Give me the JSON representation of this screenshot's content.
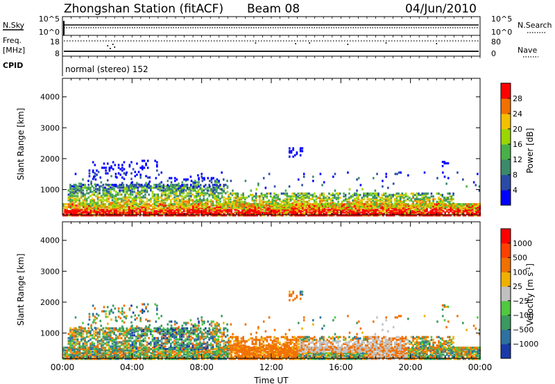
{
  "header": {
    "station": "Zhongshan Station (fitACF)",
    "beam": "Beam 08",
    "date": "04/Jun/2010"
  },
  "top_panel": {
    "left_label": "N.Sky",
    "left_ticks": [
      "10^5",
      "10^0"
    ],
    "right_label": "N.Search",
    "right_ticks": [
      "10^5",
      "10^0"
    ]
  },
  "freq_panel": {
    "left_label_line1": "Freq.",
    "left_label_line2": "[MHz]",
    "left_ticks": [
      "18",
      "8"
    ],
    "right_label": "Nave",
    "right_ticks": [
      "80",
      "0"
    ]
  },
  "cpid": {
    "label": "CPID",
    "mode": "normal (stereo) 152"
  },
  "colors": {
    "blue": "#1a1aff",
    "navy": "#2040a0",
    "teal": "#3a8a6a",
    "green": "#50c030",
    "lightgreen": "#80e040",
    "gray": "#c0c0c0",
    "yellow": "#f0c000",
    "orange": "#f08000",
    "darkorange": "#ff5000",
    "red": "#ff0000"
  },
  "chart_data": [
    {
      "type": "heatmap",
      "name_panel": "power",
      "ylabel": "Slant Range [km]",
      "yticks": [
        "1000",
        "2000",
        "3000",
        "4000"
      ],
      "ylim": [
        180,
        4600
      ],
      "xlim_hours": [
        0,
        24
      ],
      "xticks_hours": [
        0,
        4,
        8,
        12,
        16,
        20,
        24
      ],
      "colorbar": {
        "label": "Power [dB]",
        "range": [
          0,
          32
        ],
        "ticks": [
          "4",
          "8",
          "12",
          "16",
          "20",
          "24",
          "28"
        ],
        "colors": [
          "#0000ff",
          "#2a4aa6",
          "#3c8a6a",
          "#48b048",
          "#9ad600",
          "#f2c000",
          "#f07000",
          "#ff0000"
        ]
      }
    },
    {
      "type": "heatmap",
      "name_panel": "velocity",
      "ylabel": "Slant Range [km]",
      "yticks": [
        "1000",
        "2000",
        "3000",
        "4000"
      ],
      "ylim": [
        180,
        4600
      ],
      "xlim_hours": [
        0,
        24
      ],
      "xticks_hours": [
        0,
        4,
        8,
        12,
        16,
        20,
        24
      ],
      "xtick_labels": [
        "00:00",
        "04:00",
        "08:00",
        "12:00",
        "16:00",
        "20:00",
        "00:00"
      ],
      "xlabel": "Time UT",
      "colorbar": {
        "label": "Velocity [m s",
        "label_sup": "-1",
        "label_end": "]",
        "ticks": [
          "1000",
          "500",
          "100",
          "25",
          "−25",
          "−100",
          "−500",
          "−1000"
        ],
        "colors": [
          "#1a3aa8",
          "#2e70a0",
          "#3a9a60",
          "#50c840",
          "#c0c0c0",
          "#f0b000",
          "#f07000",
          "#ff4000",
          "#ff0000"
        ]
      }
    }
  ]
}
